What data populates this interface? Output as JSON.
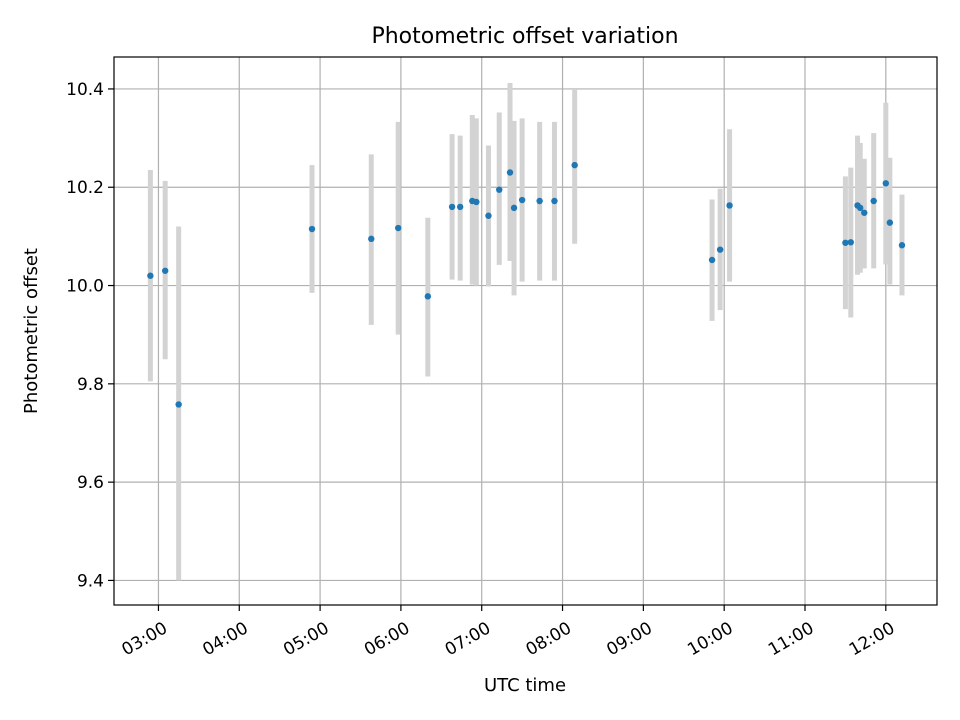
{
  "chart_data": {
    "type": "scatter",
    "title": "Photometric offset variation",
    "xlabel": "UTC time",
    "ylabel": "Photometric offset",
    "x_is_time": true,
    "xlim": [
      "02:27",
      "12:38"
    ],
    "ylim": [
      9.35,
      10.465
    ],
    "x_ticks": [
      "03:00",
      "04:00",
      "05:00",
      "06:00",
      "07:00",
      "08:00",
      "09:00",
      "10:00",
      "11:00",
      "12:00"
    ],
    "y_ticks": [
      9.4,
      9.6,
      9.8,
      10.0,
      10.2,
      10.4
    ],
    "y_tick_labels": [
      "9.4",
      "9.6",
      "9.8",
      "10.0",
      "10.2",
      "10.4"
    ],
    "grid": true,
    "colors": {
      "point": "#1f77b4",
      "errorbar": "#d3d3d3",
      "grid": "#b0b0b0"
    },
    "series": [
      {
        "points": [
          {
            "x": "02:54",
            "y": 10.02,
            "ylo": 9.805,
            "yhi": 10.235
          },
          {
            "x": "03:05",
            "y": 10.03,
            "ylo": 9.85,
            "yhi": 10.213
          },
          {
            "x": "03:15",
            "y": 9.758,
            "ylo": 9.4,
            "yhi": 10.12
          },
          {
            "x": "04:54",
            "y": 10.115,
            "ylo": 9.985,
            "yhi": 10.245
          },
          {
            "x": "05:38",
            "y": 10.095,
            "ylo": 9.92,
            "yhi": 10.267
          },
          {
            "x": "05:58",
            "y": 10.117,
            "ylo": 9.9,
            "yhi": 10.333
          },
          {
            "x": "06:20",
            "y": 9.978,
            "ylo": 9.815,
            "yhi": 10.138
          },
          {
            "x": "06:38",
            "y": 10.16,
            "ylo": 10.012,
            "yhi": 10.308
          },
          {
            "x": "06:44",
            "y": 10.16,
            "ylo": 10.01,
            "yhi": 10.305
          },
          {
            "x": "06:53",
            "y": 10.172,
            "ylo": 10.002,
            "yhi": 10.347
          },
          {
            "x": "06:56",
            "y": 10.17,
            "ylo": 10.0,
            "yhi": 10.34
          },
          {
            "x": "07:05",
            "y": 10.142,
            "ylo": 9.998,
            "yhi": 10.285
          },
          {
            "x": "07:13",
            "y": 10.195,
            "ylo": 10.042,
            "yhi": 10.352
          },
          {
            "x": "07:21",
            "y": 10.23,
            "ylo": 10.05,
            "yhi": 10.412
          },
          {
            "x": "07:24",
            "y": 10.158,
            "ylo": 9.98,
            "yhi": 10.335
          },
          {
            "x": "07:30",
            "y": 10.174,
            "ylo": 10.008,
            "yhi": 10.34
          },
          {
            "x": "07:43",
            "y": 10.172,
            "ylo": 10.01,
            "yhi": 10.333
          },
          {
            "x": "07:54",
            "y": 10.172,
            "ylo": 10.01,
            "yhi": 10.333
          },
          {
            "x": "08:09",
            "y": 10.245,
            "ylo": 10.085,
            "yhi": 10.4
          },
          {
            "x": "09:51",
            "y": 10.052,
            "ylo": 9.928,
            "yhi": 10.175
          },
          {
            "x": "09:57",
            "y": 10.073,
            "ylo": 9.95,
            "yhi": 10.197
          },
          {
            "x": "10:04",
            "y": 10.163,
            "ylo": 10.008,
            "yhi": 10.318
          },
          {
            "x": "11:30",
            "y": 10.087,
            "ylo": 9.952,
            "yhi": 10.222
          },
          {
            "x": "11:34",
            "y": 10.088,
            "ylo": 9.935,
            "yhi": 10.24
          },
          {
            "x": "11:39",
            "y": 10.163,
            "ylo": 10.022,
            "yhi": 10.305
          },
          {
            "x": "11:41",
            "y": 10.158,
            "ylo": 10.026,
            "yhi": 10.29
          },
          {
            "x": "11:44",
            "y": 10.148,
            "ylo": 10.035,
            "yhi": 10.258
          },
          {
            "x": "11:51",
            "y": 10.172,
            "ylo": 10.035,
            "yhi": 10.31
          },
          {
            "x": "12:00",
            "y": 10.208,
            "ylo": 10.043,
            "yhi": 10.372
          },
          {
            "x": "12:03",
            "y": 10.128,
            "ylo": 10.002,
            "yhi": 10.26
          },
          {
            "x": "12:12",
            "y": 10.082,
            "ylo": 9.98,
            "yhi": 10.185
          }
        ]
      }
    ]
  }
}
